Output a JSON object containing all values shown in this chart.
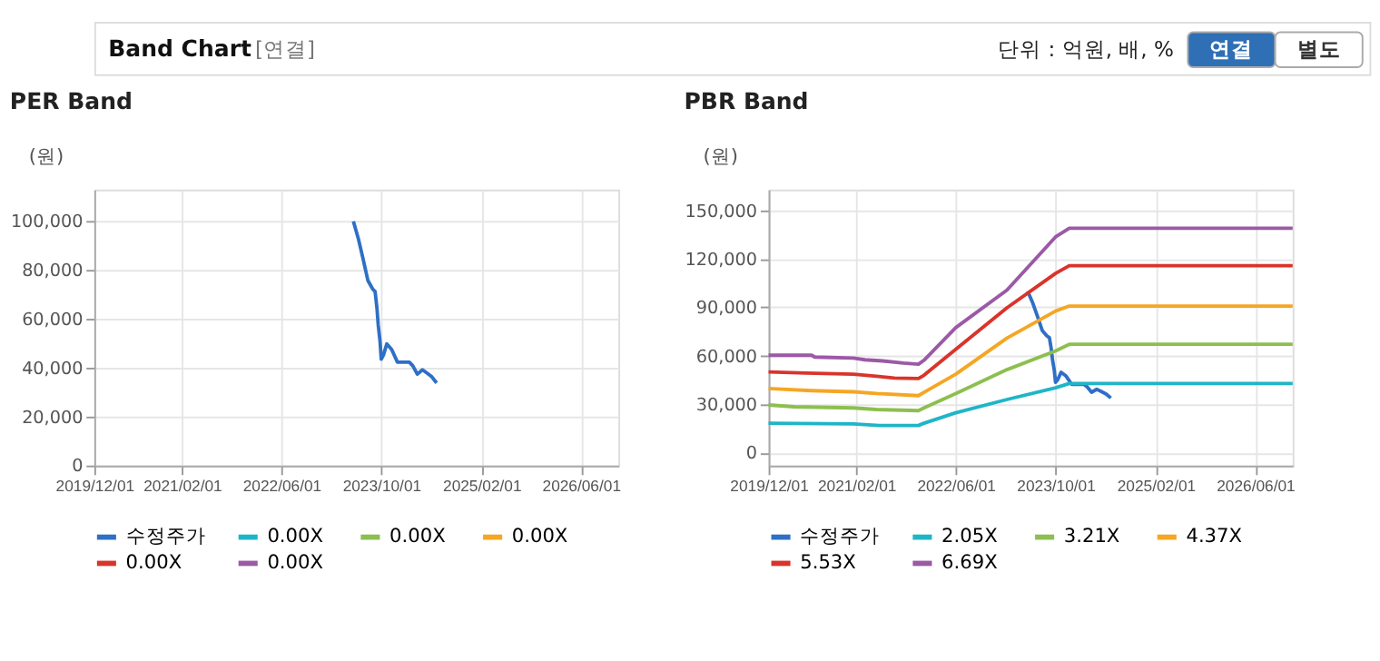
{
  "chart_data": [
    {
      "type": "line",
      "title": "PER Band",
      "ylabel": "(원)",
      "annotations": [
        "Band Chart",
        "[연결]",
        "단위 : 억원, 배, %",
        "연결",
        "별도"
      ],
      "xlim": [
        "2019-12-01",
        "2026-12-01"
      ],
      "xticks": [
        {
          "value": "2019-12-01",
          "label": "2019/12/01"
        },
        {
          "value": "2021-02-01",
          "label": "2021/02/01"
        },
        {
          "value": "2022-06-01",
          "label": "2022/06/01"
        },
        {
          "value": "2023-10-01",
          "label": "2023/10/01"
        },
        {
          "value": "2025-02-01",
          "label": "2025/02/01"
        },
        {
          "value": "2026-06-01",
          "label": "2026/06/01"
        }
      ],
      "ylim": [
        0,
        113000
      ],
      "yticks": [
        0,
        {
          "value": 20000,
          "label": "20,000"
        },
        {
          "value": 40000,
          "label": "40,000"
        },
        {
          "value": 60000,
          "label": "60,000"
        },
        {
          "value": 80000,
          "label": "80,000"
        },
        {
          "value": 100000,
          "label": "100,000"
        }
      ],
      "grid": true,
      "legend": "bottom",
      "marker": "none",
      "series": [
        {
          "name": "수정주가",
          "color": "#2f6fc6",
          "x": [
            "2023-05-18",
            "2023-06-12",
            "2023-07-04",
            "2023-07-28",
            "2023-08-20",
            "2023-09-01",
            "2023-09-10",
            "2023-09-16",
            "2023-09-25",
            "2023-10-01",
            "2023-10-12",
            "2023-10-28",
            "2023-11-21",
            "2023-12-19",
            "2024-02-15",
            "2024-03-03",
            "2024-03-25",
            "2024-04-19",
            "2024-05-12",
            "2024-06-04",
            "2024-06-27"
          ],
          "values": [
            100000,
            92600,
            84700,
            75700,
            72300,
            71200,
            64400,
            57700,
            50900,
            43500,
            45300,
            49800,
            47500,
            42300,
            42300,
            40800,
            37400,
            39200,
            37800,
            36300,
            33800
          ]
        },
        {
          "name": "0.00X",
          "color": "#1fb5c8"
        },
        {
          "name": "0.00X",
          "color": "#8cbf4f"
        },
        {
          "name": "0.00X",
          "color": "#f5a623"
        },
        {
          "name": "0.00X",
          "color": "#d9342b"
        },
        {
          "name": "0.00X",
          "color": "#9b59a6"
        }
      ]
    },
    {
      "type": "line",
      "title": "PBR Band",
      "ylabel": "(원)",
      "xlim": [
        "2019-12-01",
        "2026-12-01"
      ],
      "xticks": [
        {
          "value": "2019-12-01",
          "label": "2019/12/01"
        },
        {
          "value": "2021-02-01",
          "label": "2021/02/01"
        },
        {
          "value": "2022-06-01",
          "label": "2022/06/01"
        },
        {
          "value": "2023-10-01",
          "label": "2023/10/01"
        },
        {
          "value": "2025-02-01",
          "label": "2025/02/01"
        },
        {
          "value": "2026-06-01",
          "label": "2026/06/01"
        }
      ],
      "ylim": [
        -8000,
        163000
      ],
      "yticks": [
        0,
        {
          "value": 30000,
          "label": "30,000"
        },
        {
          "value": 60000,
          "label": "60,000"
        },
        {
          "value": 90000,
          "label": "90,000"
        },
        {
          "value": 120000,
          "label": "120,000"
        },
        {
          "value": 150000,
          "label": "150,000"
        }
      ],
      "grid": true,
      "legend": "bottom",
      "marker": "none",
      "series": [
        {
          "name": "수정주가",
          "color": "#2f6fc6",
          "x": [
            "2023-05-18",
            "2023-06-12",
            "2023-07-04",
            "2023-07-28",
            "2023-08-20",
            "2023-09-01",
            "2023-09-10",
            "2023-09-16",
            "2023-09-25",
            "2023-10-01",
            "2023-10-12",
            "2023-10-28",
            "2023-11-21",
            "2023-12-19",
            "2024-02-15",
            "2024-03-03",
            "2024-03-25",
            "2024-04-19",
            "2024-05-12",
            "2024-06-04",
            "2024-06-27"
          ],
          "values": [
            100000,
            92600,
            84700,
            75700,
            72300,
            71200,
            64400,
            57700,
            50900,
            43500,
            45300,
            49800,
            47500,
            42300,
            42300,
            40800,
            37400,
            39200,
            37800,
            36300,
            33800
          ]
        },
        {
          "name": "2.05X",
          "color": "#1fb5c8",
          "x": [
            "2019-12-01",
            "2021-01-18",
            "2021-05-25",
            "2021-12-01",
            "2021-12-28",
            "2022-06-01",
            "2023-02-06",
            "2023-10-01",
            "2023-12-07",
            "2026-12-01"
          ],
          "values": [
            18200,
            17800,
            16800,
            16800,
            18200,
            24700,
            32900,
            40100,
            42800,
            42800
          ]
        },
        {
          "name": "3.21X",
          "color": "#8cbf4f",
          "x": [
            "2019-12-01",
            "2020-04-04",
            "2021-01-18",
            "2021-05-10",
            "2021-12-01",
            "2021-12-28",
            "2022-06-01",
            "2023-02-06",
            "2023-10-01",
            "2023-12-07",
            "2026-12-01"
          ],
          "values": [
            29500,
            28400,
            27700,
            26700,
            26000,
            27700,
            36600,
            51400,
            63000,
            67100,
            67100
          ]
        },
        {
          "name": "4.37X",
          "color": "#f5a623",
          "x": [
            "2019-12-01",
            "2020-06-28",
            "2021-01-18",
            "2021-05-10",
            "2021-12-01",
            "2021-12-28",
            "2022-06-01",
            "2023-02-06",
            "2023-10-01",
            "2023-12-07",
            "2026-12-01"
          ],
          "values": [
            39700,
            38400,
            37700,
            36600,
            35300,
            37300,
            48600,
            70900,
            87700,
            90800,
            90800
          ]
        },
        {
          "name": "5.53X",
          "color": "#d9342b",
          "x": [
            "2019-12-01",
            "2020-06-01",
            "2021-01-18",
            "2021-05-10",
            "2021-08-06",
            "2021-12-01",
            "2021-12-28",
            "2022-06-01",
            "2023-02-06",
            "2023-10-01",
            "2023-12-07",
            "2026-12-01"
          ],
          "values": [
            50000,
            49300,
            48600,
            47300,
            46200,
            45900,
            47900,
            64000,
            89700,
            111000,
            115800,
            115800
          ]
        },
        {
          "name": "6.69X",
          "color": "#9b59a6",
          "x": [
            "2019-12-01",
            "2020-06-28",
            "2020-07-13",
            "2021-01-18",
            "2021-03-15",
            "2021-06-10",
            "2021-09-19",
            "2021-12-01",
            "2021-12-28",
            "2022-06-01",
            "2023-02-06",
            "2023-10-01",
            "2023-12-07",
            "2026-12-01"
          ],
          "values": [
            60300,
            60300,
            59200,
            58600,
            57500,
            56800,
            55500,
            54800,
            57200,
            77400,
            100700,
            133600,
            139000,
            139000
          ]
        }
      ]
    }
  ]
}
